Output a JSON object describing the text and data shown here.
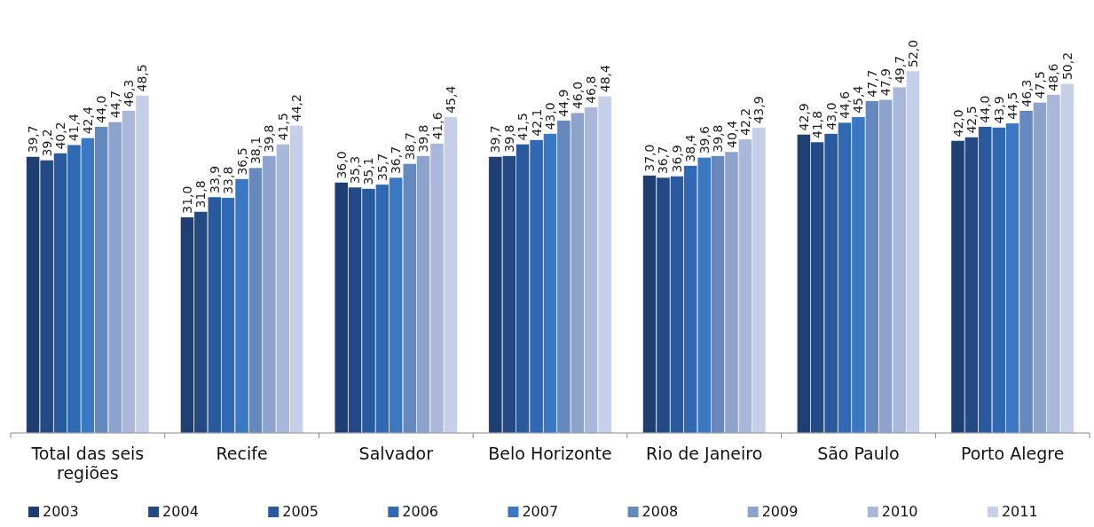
{
  "chart_data": {
    "type": "bar",
    "categories": [
      "Total das seis regiões",
      "Recife",
      "Salvador",
      "Belo Horizonte",
      "Rio de Janeiro",
      "São Paulo",
      "Porto Alegre"
    ],
    "series": [
      {
        "name": "2003",
        "color": "#1f3f73",
        "values": [
          39.7,
          31.0,
          36.0,
          39.7,
          37.0,
          42.9,
          42.0
        ],
        "value_labels": [
          "39,7",
          "31,0",
          "36,0",
          "39,7",
          "37,0",
          "42,9",
          "42,0"
        ]
      },
      {
        "name": "2004",
        "color": "#244a86",
        "values": [
          39.2,
          31.8,
          35.3,
          39.8,
          36.7,
          41.8,
          42.5
        ],
        "value_labels": [
          "39,2",
          "31,8",
          "35,3",
          "39,8",
          "36,7",
          "41,8",
          "42,5"
        ]
      },
      {
        "name": "2005",
        "color": "#2a5a9e",
        "values": [
          40.2,
          33.9,
          35.1,
          41.5,
          36.9,
          43.0,
          44.0
        ],
        "value_labels": [
          "40,2",
          "33,9",
          "35,1",
          "41,5",
          "36,9",
          "43,0",
          "44,0"
        ]
      },
      {
        "name": "2006",
        "color": "#3068b3",
        "values": [
          41.4,
          33.8,
          35.7,
          42.1,
          38.4,
          44.6,
          43.9
        ],
        "value_labels": [
          "41,4",
          "33,8",
          "35,7",
          "42,1",
          "38,4",
          "44,6",
          "43,9"
        ]
      },
      {
        "name": "2007",
        "color": "#3a78c4",
        "values": [
          42.4,
          36.5,
          36.7,
          43.0,
          39.6,
          45.4,
          44.5
        ],
        "value_labels": [
          "42,4",
          "36,5",
          "36,7",
          "43,0",
          "39,6",
          "45,4",
          "44,5"
        ]
      },
      {
        "name": "2008",
        "color": "#6689bd",
        "values": [
          44.0,
          38.1,
          38.7,
          44.9,
          39.8,
          47.7,
          46.3
        ],
        "value_labels": [
          "44,0",
          "38,1",
          "38,7",
          "44,9",
          "39,8",
          "47,7",
          "46,3"
        ]
      },
      {
        "name": "2009",
        "color": "#8da3cc",
        "values": [
          44.7,
          39.8,
          39.8,
          46.0,
          40.4,
          47.9,
          47.5
        ],
        "value_labels": [
          "44,7",
          "39,8",
          "39,8",
          "46,0",
          "40,4",
          "47,9",
          "47,5"
        ]
      },
      {
        "name": "2010",
        "color": "#a9b8da",
        "values": [
          46.3,
          41.5,
          41.6,
          46.8,
          42.2,
          49.7,
          48.6
        ],
        "value_labels": [
          "46,3",
          "41,5",
          "41,6",
          "46,8",
          "42,2",
          "49,7",
          "48,6"
        ]
      },
      {
        "name": "2011",
        "color": "#c5cfe8",
        "values": [
          48.5,
          44.2,
          45.4,
          48.4,
          43.9,
          52.0,
          50.2
        ],
        "value_labels": [
          "48,5",
          "44,2",
          "45,4",
          "48,4",
          "43,9",
          "52,0",
          "50,2"
        ]
      }
    ],
    "legend": "bottom"
  }
}
